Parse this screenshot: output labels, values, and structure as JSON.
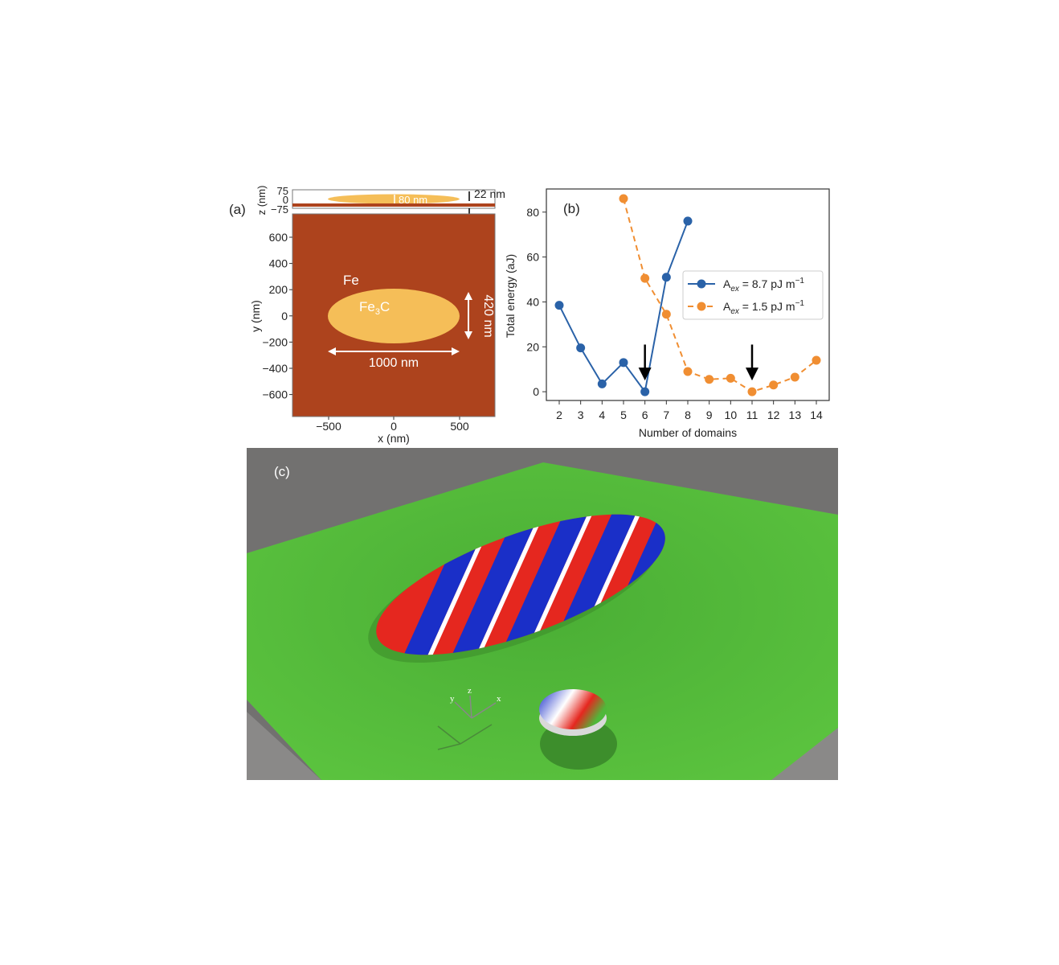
{
  "panel_a": {
    "label": "(a)",
    "top_strip": {
      "ylabel": "z (nm)",
      "yticks": [
        "75",
        "0",
        "−75"
      ],
      "thickness_label": "80 nm",
      "film_label": "22 nm"
    },
    "map": {
      "xlabel": "x (nm)",
      "ylabel": "y (nm)",
      "xticks": [
        "−500",
        "0",
        "500"
      ],
      "yticks": [
        "600",
        "400",
        "200",
        "0",
        "−200",
        "−400",
        "−600"
      ],
      "matrix_label": "Fe",
      "particle_label": {
        "main": "Fe",
        "sub": "3",
        "end": "C"
      },
      "width_label": "1000 nm",
      "height_label": "420 nm"
    },
    "colors": {
      "matrix": "#ad431d",
      "particle": "#f5be58"
    }
  },
  "chart_data": {
    "type": "line",
    "panel_label": "(b)",
    "xlabel": "Number of domains",
    "ylabel": "Total energy (aJ)",
    "xlim": [
      1.4,
      14.6
    ],
    "ylim": [
      -3.9,
      90.3
    ],
    "xticks": [
      2,
      3,
      4,
      5,
      6,
      7,
      8,
      9,
      10,
      11,
      12,
      13,
      14
    ],
    "yticks": [
      0,
      20,
      40,
      60,
      80
    ],
    "grid": false,
    "legend_position": "center-right",
    "series": [
      {
        "name": {
          "a": "A",
          "sub": "ex",
          "rest": " = 8.7 pJ m",
          "sup": "−1"
        },
        "color": "#2a62a8",
        "style": "solid",
        "x": [
          2,
          3,
          4,
          5,
          6,
          7,
          8
        ],
        "y": [
          38.5,
          19.5,
          3.5,
          13,
          0,
          51,
          76
        ]
      },
      {
        "name": {
          "a": "A",
          "sub": "ex",
          "rest": " = 1.5 pJ m",
          "sup": "−1"
        },
        "color": "#f08e32",
        "style": "dashed",
        "x": [
          5,
          6,
          7,
          8,
          9,
          10,
          11,
          12,
          13,
          14
        ],
        "y": [
          86,
          50.5,
          34.5,
          9,
          5.5,
          6,
          0,
          3,
          6.5,
          14
        ]
      }
    ],
    "annotations": [
      {
        "type": "arrow-down",
        "x": 6,
        "y_from": 21,
        "y_to": 5
      },
      {
        "type": "arrow-down",
        "x": 11,
        "y_from": 21,
        "y_to": 5
      }
    ]
  },
  "panel_c": {
    "label": "(c)",
    "axes_labels": {
      "x": "x",
      "y": "y",
      "z": "z"
    },
    "colors": {
      "background": "#727170",
      "film": "#4fb83a",
      "up": "#e5271f",
      "down": "#1a2fc8"
    }
  }
}
